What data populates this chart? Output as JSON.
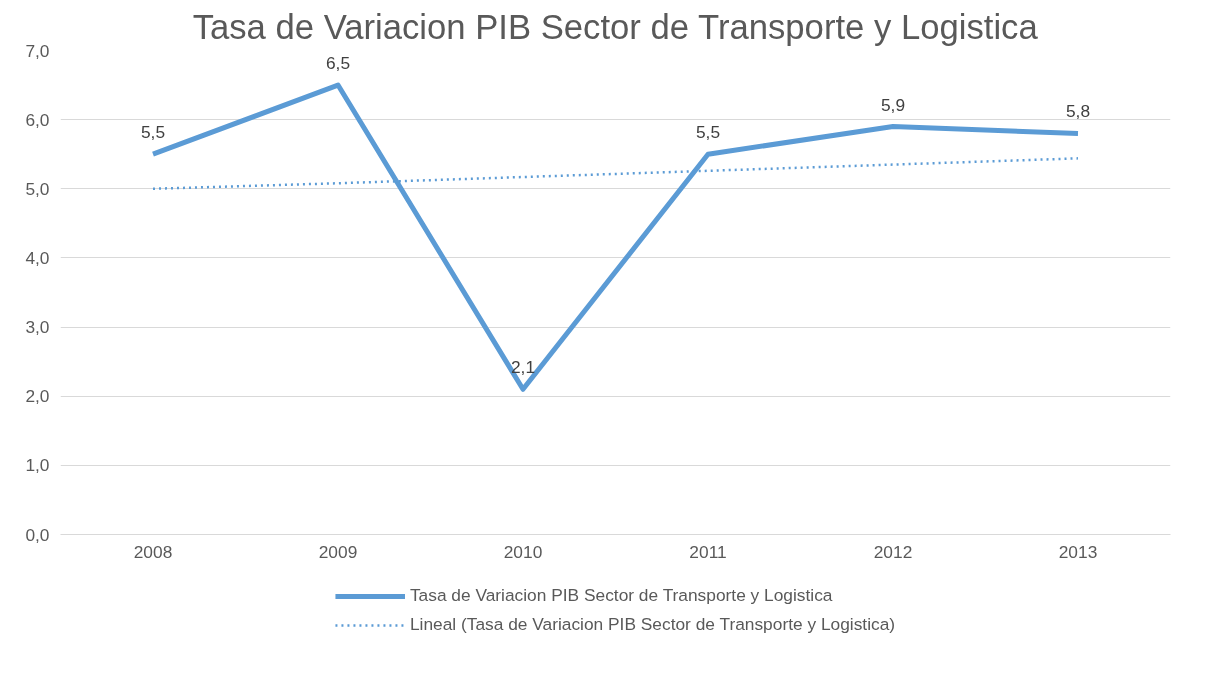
{
  "chart_data": {
    "type": "line",
    "title": "Tasa de Variacion PIB Sector de Transporte y Logistica",
    "categories": [
      "2008",
      "2009",
      "2010",
      "2011",
      "2012",
      "2013"
    ],
    "series": [
      {
        "name": "Tasa de Variacion PIB Sector de Transporte y Logistica",
        "color": "#5b9bd5",
        "values": [
          5.5,
          6.5,
          2.1,
          5.5,
          5.9,
          5.8
        ],
        "value_labels": [
          "5,5",
          "6,5",
          "2,1",
          "5,5",
          "5,9",
          "5,8"
        ],
        "line_style": "solid"
      },
      {
        "name": "Lineal (Tasa de Variacion PIB Sector de Transporte y Logistica)",
        "color": "#5b9bd5",
        "values": [
          5.0,
          5.08,
          5.17,
          5.26,
          5.35,
          5.44
        ],
        "line_style": "dotted"
      }
    ],
    "ylim": [
      0,
      7
    ],
    "yticks": [
      {
        "value": 0,
        "label": "0,0"
      },
      {
        "value": 1,
        "label": "1,0"
      },
      {
        "value": 2,
        "label": "2,0"
      },
      {
        "value": 3,
        "label": "3,0"
      },
      {
        "value": 4,
        "label": "4,0"
      },
      {
        "value": 5,
        "label": "5,0"
      },
      {
        "value": 6,
        "label": "6,0"
      },
      {
        "value": 7,
        "label": "7,0"
      }
    ],
    "grid": "y",
    "legend": "bottom",
    "marker": "none"
  }
}
